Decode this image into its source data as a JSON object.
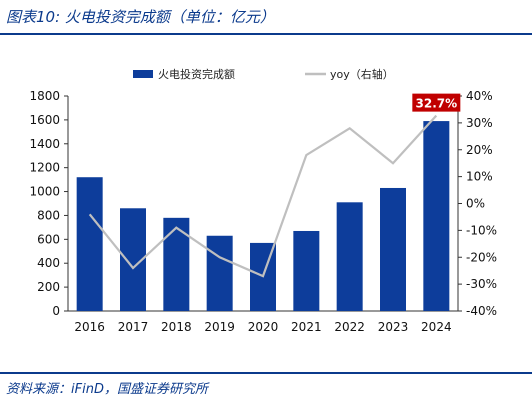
{
  "header": {
    "title": "图表10:  火电投资完成额（单位：亿元）"
  },
  "footer": {
    "source": "资料来源：iFinD，国盛证券研究所"
  },
  "colors": {
    "bar": "#0d3d9b",
    "line": "#bfbfbf",
    "accent": "#c00000",
    "brand": "#0b3a8c"
  },
  "chart_data": {
    "type": "bar",
    "categories": [
      "2016",
      "2017",
      "2018",
      "2019",
      "2020",
      "2021",
      "2022",
      "2023",
      "2024"
    ],
    "series": [
      {
        "name": "火电投资完成额",
        "type": "bar",
        "axis": "left",
        "values": [
          1120,
          860,
          780,
          630,
          570,
          670,
          910,
          1030,
          1590
        ]
      },
      {
        "name": "yoy（右轴）",
        "type": "line",
        "axis": "right",
        "values": [
          -4,
          -24,
          -9,
          -20,
          -27,
          18,
          28,
          15,
          32.7
        ]
      }
    ],
    "left_axis": {
      "min": 0,
      "max": 1800,
      "step": 200,
      "ticks": [
        "0",
        "200",
        "400",
        "600",
        "800",
        "1000",
        "1200",
        "1400",
        "1600",
        "1800"
      ]
    },
    "right_axis": {
      "min": -40,
      "max": 40,
      "step": 10,
      "ticks": [
        "-40%",
        "-30%",
        "-20%",
        "-10%",
        "0%",
        "10%",
        "20%",
        "30%",
        "40%"
      ]
    },
    "annotation": {
      "category": "2024",
      "text": "32.7%"
    },
    "legend_position": "top",
    "grid": false
  }
}
